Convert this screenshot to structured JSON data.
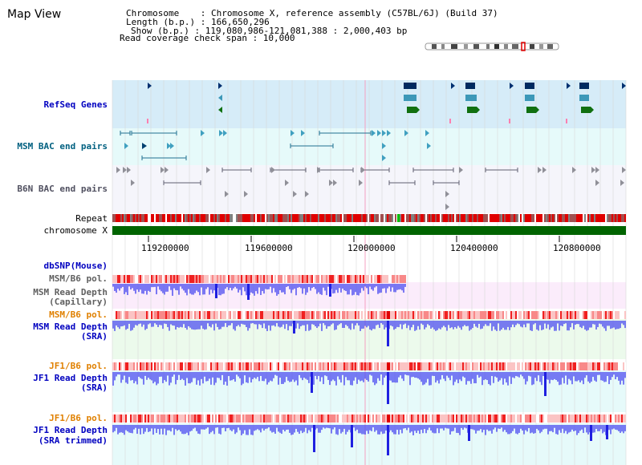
{
  "title": "Map View",
  "info": {
    "chromosome_line": "Chromosome    : Chromosome X, reference assembly (C57BL/6J) (Build 37)",
    "length_line": "Length (b.p.) : 166,650,296",
    "show_line": "Show (b.p.) : 119,080,986-121,081,388 : 2,000,403 bp",
    "coverage_line": "Read coverage check span : 10,000"
  },
  "tracks": {
    "refseq": "RefSeq Genes",
    "msm_bac": "MSM BAC end pairs",
    "b6n_bac": "B6N BAC end pairs",
    "repeat": "Repeat",
    "chromosome": "chromosome X",
    "dbsnp": "dbSNP(Mouse)",
    "msm_b6_pol_1": "MSM/B6 pol.",
    "msm_depth_cap_1": "MSM Read Depth",
    "msm_depth_cap_2": "(Capillary)",
    "msm_b6_pol_2": "MSM/B6 pol.",
    "msm_depth_sra_1": "MSM Read Depth",
    "msm_depth_sra_2": "(SRA)",
    "jf1_b6_pol_1": "JF1/B6 pol.",
    "jf1_depth_sra_1": "JF1 Read Depth",
    "jf1_depth_sra_2": "(SRA)",
    "jf1_b6_pol_2": "JF1/B6 pol.",
    "jf1_depth_trim_1": "JF1 Read Depth",
    "jf1_depth_trim_2": "(SRA trimmed)"
  },
  "axis": {
    "ticks": [
      "119200000",
      "119600000",
      "120000000",
      "120400000",
      "120800000"
    ]
  },
  "colors": {
    "refseq_bg": "#d6ecf8",
    "bac_bg": "#e6fafa",
    "b6n_bg": "#f5f5fb",
    "depth_pink_bg": "#fbecfb",
    "depth_green_bg": "#ecfaec",
    "depth_cyan_bg": "#e6fafa",
    "refseq_label": "#0000c0",
    "msm_bac_label": "#006080",
    "b6n_label": "#505060",
    "pol_msm_label": "#e08000",
    "jf1_label": "#0000c0",
    "chromosome_bar": "#006400",
    "depth_bar": "#5050f0"
  }
}
